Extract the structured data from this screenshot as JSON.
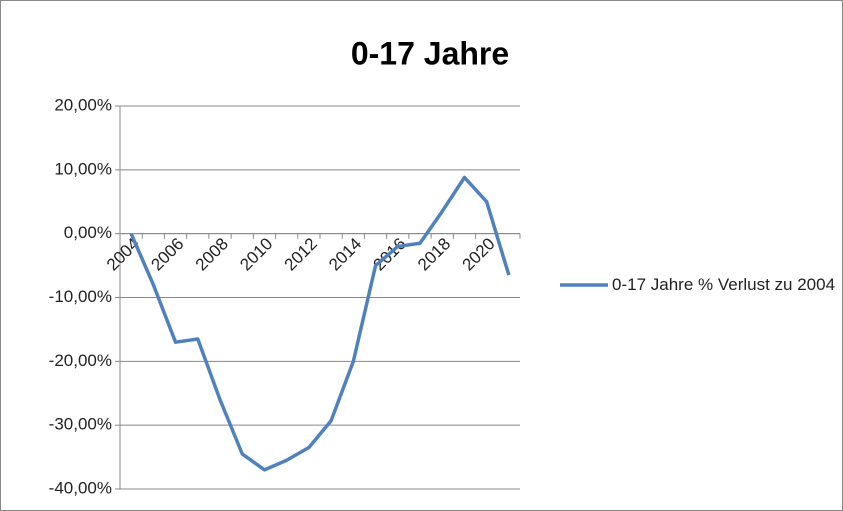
{
  "chart_data": {
    "type": "line",
    "title": "0-17 Jahre",
    "categories": [
      "2004",
      null,
      "2006",
      null,
      "2008",
      null,
      "2010",
      null,
      "2012",
      null,
      "2014",
      null,
      "2016",
      null,
      "2018",
      null,
      "2020",
      null
    ],
    "series": [
      {
        "name": "0-17 Jahre % Verlust zu 2004",
        "color": "#4f81bd",
        "values": [
          0,
          -8,
          -17,
          -16.5,
          -26,
          -34.5,
          -37,
          -35.5,
          -33.5,
          -29.3,
          -20,
          -5,
          -2,
          -1.5,
          3.5,
          8.8,
          5,
          -6.5
        ]
      }
    ],
    "ylim": [
      -40,
      20
    ],
    "yticks": [
      {
        "value": 20,
        "label": "20,00%"
      },
      {
        "value": 10,
        "label": "10,00%"
      },
      {
        "value": 0,
        "label": "0,00%"
      },
      {
        "value": -10,
        "label": "-10,00%"
      },
      {
        "value": -20,
        "label": "-20,00%"
      },
      {
        "value": -30,
        "label": "-30,00%"
      },
      {
        "value": -40,
        "label": "-40,00%"
      }
    ],
    "grid": true,
    "legend": "right"
  }
}
